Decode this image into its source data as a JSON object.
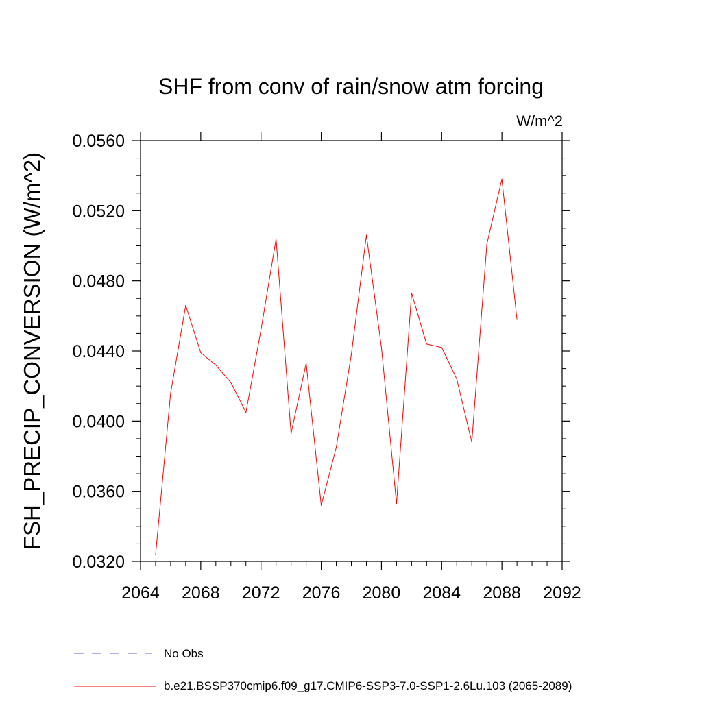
{
  "chart_data": {
    "type": "line",
    "title": "SHF from conv of rain/snow atm forcing",
    "units_label": "W/m^2",
    "ylabel": "FSH_PRECIP_CONVERSION  (W/m^2)",
    "xlabel": "",
    "xlim": [
      2064,
      2092
    ],
    "ylim": [
      0.032,
      0.056
    ],
    "x_ticks": [
      {
        "value": 2064,
        "label": "2064"
      },
      {
        "value": 2068,
        "label": "2068"
      },
      {
        "value": 2072,
        "label": "2072"
      },
      {
        "value": 2076,
        "label": "2076"
      },
      {
        "value": 2080,
        "label": "2080"
      },
      {
        "value": 2084,
        "label": "2084"
      },
      {
        "value": 2088,
        "label": "2088"
      },
      {
        "value": 2092,
        "label": "2092"
      }
    ],
    "y_ticks": [
      {
        "value": 0.032,
        "label": "0.0320"
      },
      {
        "value": 0.036,
        "label": "0.0360"
      },
      {
        "value": 0.04,
        "label": "0.0400"
      },
      {
        "value": 0.044,
        "label": "0.0440"
      },
      {
        "value": 0.048,
        "label": "0.0480"
      },
      {
        "value": 0.052,
        "label": "0.0520"
      },
      {
        "value": 0.056,
        "label": "0.0560"
      }
    ],
    "grid": false,
    "legend_position": "bottom",
    "series": [
      {
        "name": "b.e21.BSSP370cmip6.f09_g17.CMIP6-SSP3-7.0-SSP1-2.6Lu.103 (2065-2089)",
        "color": "#ff0000",
        "dash": "solid",
        "x": [
          2065,
          2066,
          2067,
          2068,
          2069,
          2070,
          2071,
          2072,
          2073,
          2074,
          2075,
          2076,
          2077,
          2078,
          2079,
          2080,
          2081,
          2082,
          2083,
          2084,
          2085,
          2086,
          2087,
          2088,
          2089
        ],
        "y": [
          0.0324,
          0.0416,
          0.0466,
          0.0439,
          0.0432,
          0.0422,
          0.0405,
          0.0452,
          0.0504,
          0.0393,
          0.0433,
          0.0352,
          0.0385,
          0.0438,
          0.0506,
          0.0442,
          0.0353,
          0.0473,
          0.0444,
          0.0442,
          0.0424,
          0.0388,
          0.0501,
          0.0538,
          0.0458
        ]
      }
    ],
    "legend": [
      {
        "label": "No Obs",
        "color": "#6a5acd",
        "dash": "dashed"
      },
      {
        "label": "b.e21.BSSP370cmip6.f09_g17.CMIP6-SSP3-7.0-SSP1-2.6Lu.103 (2065-2089)",
        "color": "#ff0000",
        "dash": "solid"
      }
    ]
  }
}
